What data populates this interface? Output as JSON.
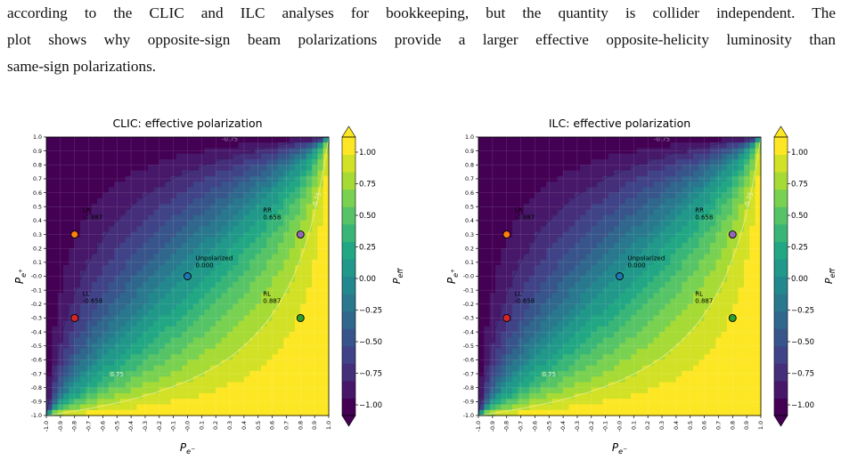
{
  "paragraph": {
    "line1": "according to the CLIC and ILC analyses for bookkeeping, but the quantity is collider independent. The",
    "line2": "plot shows why opposite-sign beam polarizations provide a larger effective opposite-helicity luminosity than",
    "line3": "same-sign polarizations."
  },
  "chart_data": [
    {
      "type": "heatmap",
      "title": "CLIC: effective polarization",
      "xlabel": "P_{e^-}",
      "ylabel": "P_{e^+}",
      "xlim": [
        -1.0,
        1.0
      ],
      "ylim": [
        -1.0,
        1.0
      ],
      "x_ticks": [
        "-1.0",
        "-0.9",
        "-0.8",
        "-0.7",
        "-0.6",
        "-0.5",
        "-0.4",
        "-0.3",
        "-0.2",
        "-0.1",
        "-0.0",
        "0.1",
        "0.2",
        "0.3",
        "0.4",
        "0.5",
        "0.6",
        "0.7",
        "0.8",
        "0.9",
        "1.0"
      ],
      "y_ticks": [
        "1.0",
        "0.9",
        "0.8",
        "0.7",
        "0.6",
        "0.5",
        "0.4",
        "0.3",
        "0.2",
        "0.1",
        "-0.0",
        "-0.1",
        "-0.2",
        "-0.3",
        "-0.4",
        "-0.5",
        "-0.6",
        "-0.7",
        "-0.8",
        "-0.9",
        "-1.0"
      ],
      "colorbar": {
        "label": "P_eff",
        "ticks": [
          "1.00",
          "0.75",
          "0.50",
          "0.25",
          "0.00",
          "−0.25",
          "−0.50",
          "−0.75",
          "−1.00"
        ],
        "range": [
          -1.0,
          1.0
        ]
      },
      "contour_labels": [
        "-0.75",
        "0.75",
        "0.75"
      ],
      "points": [
        {
          "label": "LR",
          "value": "-0.887",
          "x": -0.8,
          "y": 0.3,
          "color": "#ff7f0e"
        },
        {
          "label": "RR",
          "value": "0.658",
          "x": 0.8,
          "y": 0.3,
          "color": "#9467bd"
        },
        {
          "label": "Unpolarized",
          "value": "0.000",
          "x": 0.0,
          "y": 0.0,
          "color": "#1f77b4"
        },
        {
          "label": "LL",
          "value": "-0.658",
          "x": -0.8,
          "y": -0.3,
          "color": "#d62728"
        },
        {
          "label": "RL",
          "value": "0.887",
          "x": 0.8,
          "y": -0.3,
          "color": "#2ca02c"
        }
      ]
    },
    {
      "type": "heatmap",
      "title": "ILC: effective polarization",
      "xlabel": "P_{e^-}",
      "ylabel": "P_{e^+}",
      "xlim": [
        -1.0,
        1.0
      ],
      "ylim": [
        -1.0,
        1.0
      ],
      "x_ticks": [
        "-1.0",
        "-0.9",
        "-0.8",
        "-0.7",
        "-0.6",
        "-0.5",
        "-0.4",
        "-0.3",
        "-0.2",
        "-0.1",
        "-0.0",
        "0.1",
        "0.2",
        "0.3",
        "0.4",
        "0.5",
        "0.6",
        "0.7",
        "0.8",
        "0.9",
        "1.0"
      ],
      "y_ticks": [
        "1.0",
        "0.9",
        "0.8",
        "0.7",
        "0.6",
        "0.5",
        "0.4",
        "0.3",
        "0.2",
        "0.1",
        "-0.0",
        "-0.1",
        "-0.2",
        "-0.3",
        "-0.4",
        "-0.5",
        "-0.6",
        "-0.7",
        "-0.8",
        "-0.9",
        "-1.0"
      ],
      "colorbar": {
        "label": "P_eff",
        "ticks": [
          "1.00",
          "0.75",
          "0.50",
          "0.25",
          "0.00",
          "−0.25",
          "−0.50",
          "−0.75",
          "−1.00"
        ],
        "range": [
          -1.0,
          1.0
        ]
      },
      "contour_labels": [
        "-0.75",
        "0.75",
        "0.75"
      ],
      "points": [
        {
          "label": "LR",
          "value": "-0.887",
          "x": -0.8,
          "y": 0.3,
          "color": "#ff7f0e"
        },
        {
          "label": "RR",
          "value": "0.658",
          "x": 0.8,
          "y": 0.3,
          "color": "#9467bd"
        },
        {
          "label": "Unpolarized",
          "value": "0.000",
          "x": 0.0,
          "y": 0.0,
          "color": "#1f77b4"
        },
        {
          "label": "LL",
          "value": "-0.658",
          "x": -0.8,
          "y": -0.3,
          "color": "#d62728"
        },
        {
          "label": "RL",
          "value": "0.887",
          "x": 0.8,
          "y": -0.3,
          "color": "#2ca02c"
        }
      ]
    }
  ]
}
